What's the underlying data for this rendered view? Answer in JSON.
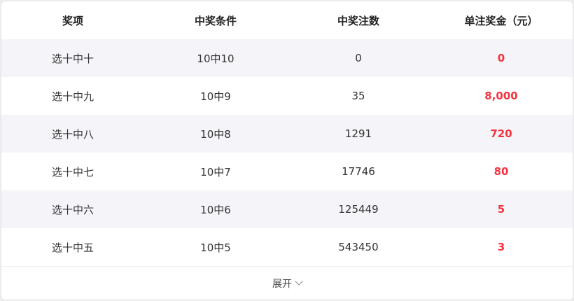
{
  "table": {
    "headers": [
      "奖项",
      "中奖条件",
      "中奖注数",
      "单注奖金（元）"
    ],
    "rows": [
      [
        "选十中十",
        "10中10",
        "0",
        "0"
      ],
      [
        "选十中九",
        "10中9",
        "35",
        "8,000"
      ],
      [
        "选十中八",
        "10中8",
        "1291",
        "720"
      ],
      [
        "选十中七",
        "10中7",
        "17746",
        "80"
      ],
      [
        "选十中六",
        "10中6",
        "125449",
        "5"
      ],
      [
        "选十中五",
        "10中5",
        "543450",
        "3"
      ]
    ]
  },
  "footer": {
    "expand_label": "展开",
    "icon": "chevron-down-icon"
  },
  "colors": {
    "prize": "#f5333f",
    "alt_row": "#f5f5f9"
  }
}
